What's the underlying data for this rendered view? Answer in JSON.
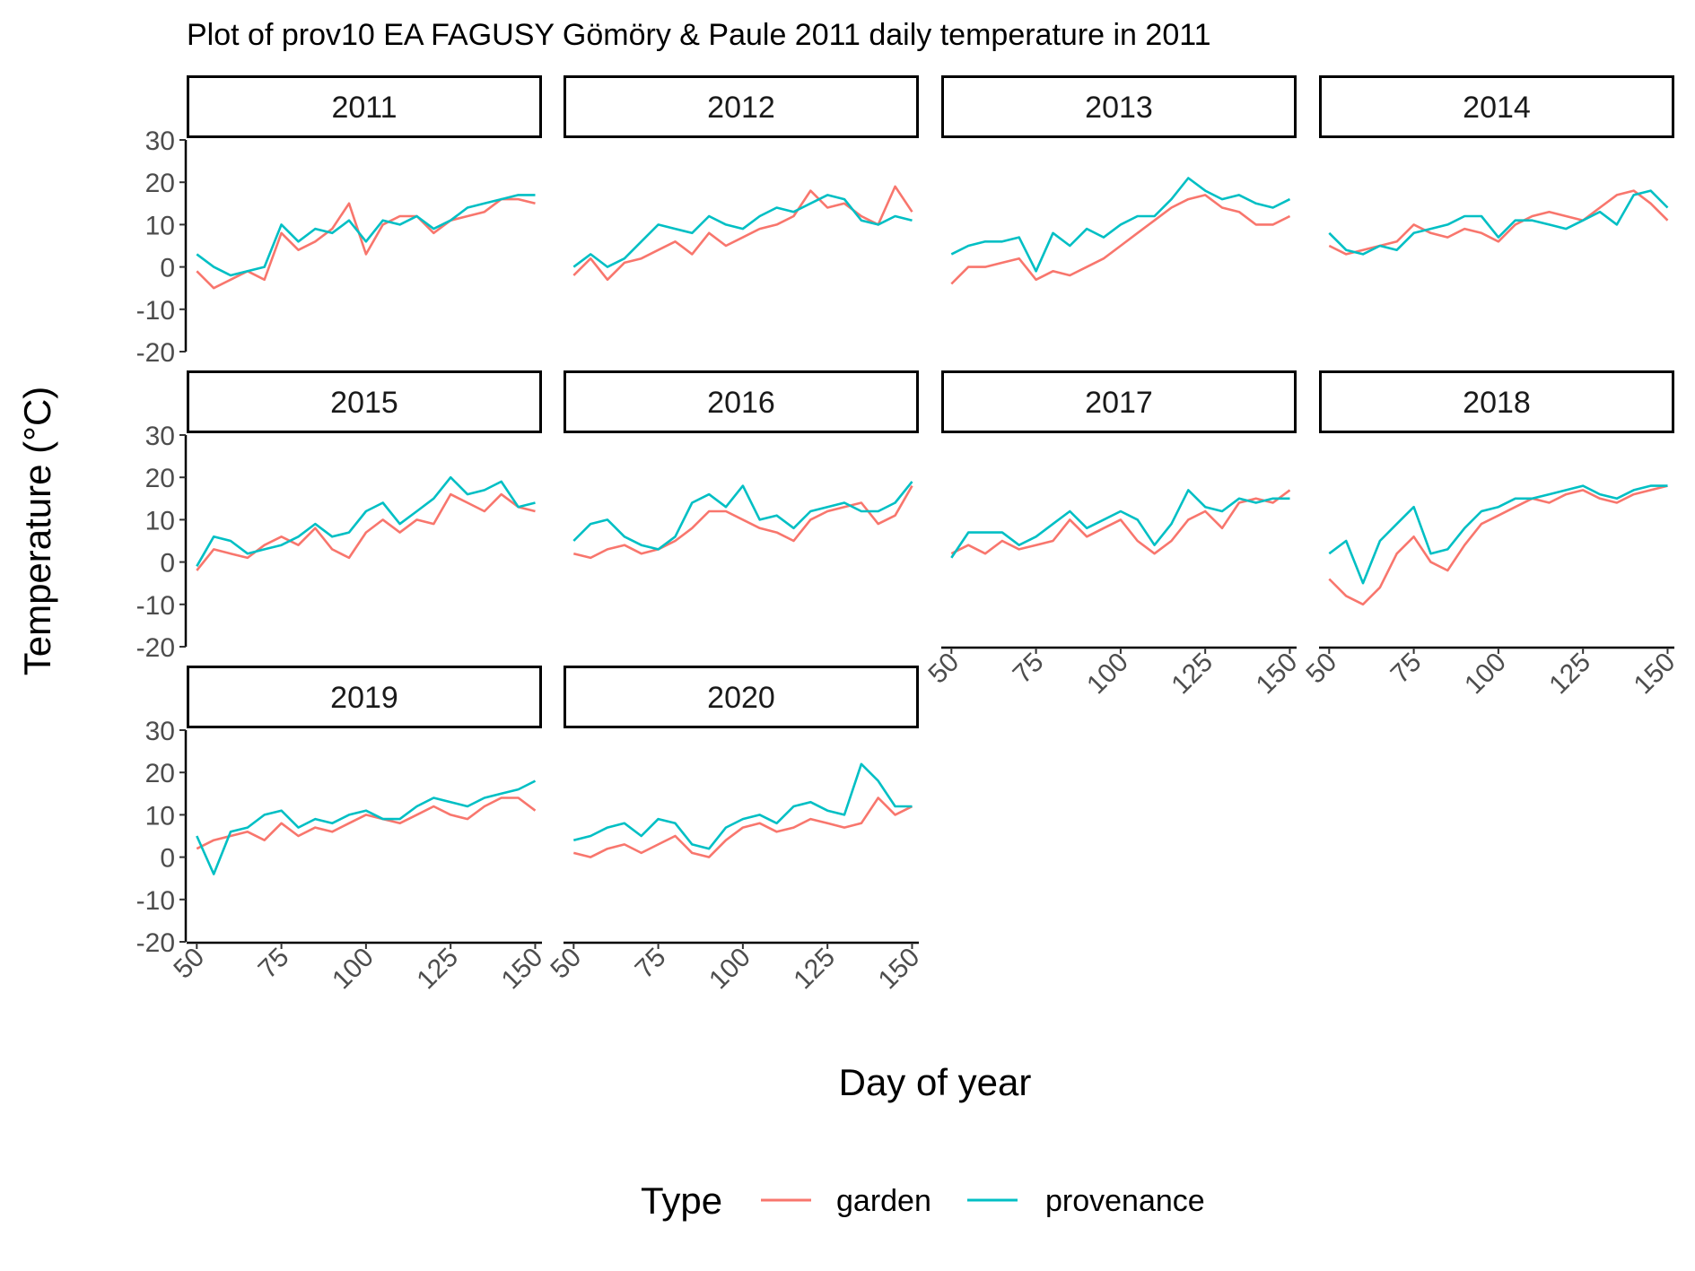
{
  "chart_data": {
    "type": "line",
    "title": "Plot of prov10 EA FAGUSY Gömöry & Paule 2011 daily temperature in 2011",
    "xlabel": "Day of year",
    "ylabel": "Temperature (°C)",
    "xlim": [
      47,
      152
    ],
    "ylim": [
      -20,
      30
    ],
    "xticks": [
      50,
      75,
      100,
      125,
      150
    ],
    "yticks": [
      -20,
      -10,
      0,
      10,
      20,
      30
    ],
    "legend": {
      "title": "Type",
      "position": "bottom",
      "entries": [
        {
          "name": "garden",
          "color": "#F8766D"
        },
        {
          "name": "provenance",
          "color": "#00BFC4"
        }
      ]
    },
    "x": [
      50,
      55,
      60,
      65,
      70,
      75,
      80,
      85,
      90,
      95,
      100,
      105,
      110,
      115,
      120,
      125,
      130,
      135,
      140,
      145,
      150
    ],
    "panels": [
      {
        "label": "2011",
        "series": [
          {
            "name": "garden",
            "values": [
              -1,
              -5,
              -3,
              -1,
              -3,
              8,
              4,
              6,
              9,
              15,
              3,
              10,
              12,
              12,
              8,
              11,
              12,
              13,
              16,
              16,
              15
            ]
          },
          {
            "name": "provenance",
            "values": [
              3,
              0,
              -2,
              -1,
              0,
              10,
              6,
              9,
              8,
              11,
              6,
              11,
              10,
              12,
              9,
              11,
              14,
              15,
              16,
              17,
              17
            ]
          }
        ]
      },
      {
        "label": "2012",
        "series": [
          {
            "name": "garden",
            "values": [
              -2,
              2,
              -3,
              1,
              2,
              4,
              6,
              3,
              8,
              5,
              7,
              9,
              10,
              12,
              18,
              14,
              15,
              12,
              10,
              19,
              13
            ]
          },
          {
            "name": "provenance",
            "values": [
              0,
              3,
              0,
              2,
              6,
              10,
              9,
              8,
              12,
              10,
              9,
              12,
              14,
              13,
              15,
              17,
              16,
              11,
              10,
              12,
              11
            ]
          }
        ]
      },
      {
        "label": "2013",
        "series": [
          {
            "name": "garden",
            "values": [
              -4,
              0,
              0,
              1,
              2,
              -3,
              -1,
              -2,
              0,
              2,
              5,
              8,
              11,
              14,
              16,
              17,
              14,
              13,
              10,
              10,
              12
            ]
          },
          {
            "name": "provenance",
            "values": [
              3,
              5,
              6,
              6,
              7,
              -1,
              8,
              5,
              9,
              7,
              10,
              12,
              12,
              16,
              21,
              18,
              16,
              17,
              15,
              14,
              16
            ]
          }
        ]
      },
      {
        "label": "2014",
        "series": [
          {
            "name": "garden",
            "values": [
              5,
              3,
              4,
              5,
              6,
              10,
              8,
              7,
              9,
              8,
              6,
              10,
              12,
              13,
              12,
              11,
              14,
              17,
              18,
              15,
              11
            ]
          },
          {
            "name": "provenance",
            "values": [
              8,
              4,
              3,
              5,
              4,
              8,
              9,
              10,
              12,
              12,
              7,
              11,
              11,
              10,
              9,
              11,
              13,
              10,
              17,
              18,
              14
            ]
          }
        ]
      },
      {
        "label": "2015",
        "series": [
          {
            "name": "garden",
            "values": [
              -2,
              3,
              2,
              1,
              4,
              6,
              4,
              8,
              3,
              1,
              7,
              10,
              7,
              10,
              9,
              16,
              14,
              12,
              16,
              13,
              12
            ]
          },
          {
            "name": "provenance",
            "values": [
              -1,
              6,
              5,
              2,
              3,
              4,
              6,
              9,
              6,
              7,
              12,
              14,
              9,
              12,
              15,
              20,
              16,
              17,
              19,
              13,
              14
            ]
          }
        ]
      },
      {
        "label": "2016",
        "series": [
          {
            "name": "garden",
            "values": [
              2,
              1,
              3,
              4,
              2,
              3,
              5,
              8,
              12,
              12,
              10,
              8,
              7,
              5,
              10,
              12,
              13,
              14,
              9,
              11,
              18
            ]
          },
          {
            "name": "provenance",
            "values": [
              5,
              9,
              10,
              6,
              4,
              3,
              6,
              14,
              16,
              13,
              18,
              10,
              11,
              8,
              12,
              13,
              14,
              12,
              12,
              14,
              19
            ]
          }
        ]
      },
      {
        "label": "2017",
        "series": [
          {
            "name": "garden",
            "values": [
              2,
              4,
              2,
              5,
              3,
              4,
              5,
              10,
              6,
              8,
              10,
              5,
              2,
              5,
              10,
              12,
              8,
              14,
              15,
              14,
              17
            ]
          },
          {
            "name": "provenance",
            "values": [
              1,
              7,
              7,
              7,
              4,
              6,
              9,
              12,
              8,
              10,
              12,
              10,
              4,
              9,
              17,
              13,
              12,
              15,
              14,
              15,
              15
            ]
          }
        ]
      },
      {
        "label": "2018",
        "series": [
          {
            "name": "garden",
            "values": [
              -4,
              -8,
              -10,
              -6,
              2,
              6,
              0,
              -2,
              4,
              9,
              11,
              13,
              15,
              14,
              16,
              17,
              15,
              14,
              16,
              17,
              18
            ]
          },
          {
            "name": "provenance",
            "values": [
              2,
              5,
              -5,
              5,
              9,
              13,
              2,
              3,
              8,
              12,
              13,
              15,
              15,
              16,
              17,
              18,
              16,
              15,
              17,
              18,
              18
            ]
          }
        ]
      },
      {
        "label": "2019",
        "series": [
          {
            "name": "garden",
            "values": [
              2,
              4,
              5,
              6,
              4,
              8,
              5,
              7,
              6,
              8,
              10,
              9,
              8,
              10,
              12,
              10,
              9,
              12,
              14,
              14,
              11
            ]
          },
          {
            "name": "provenance",
            "values": [
              5,
              -4,
              6,
              7,
              10,
              11,
              7,
              9,
              8,
              10,
              11,
              9,
              9,
              12,
              14,
              13,
              12,
              14,
              15,
              16,
              18
            ]
          }
        ]
      },
      {
        "label": "2020",
        "series": [
          {
            "name": "garden",
            "values": [
              1,
              0,
              2,
              3,
              1,
              3,
              5,
              1,
              0,
              4,
              7,
              8,
              6,
              7,
              9,
              8,
              7,
              8,
              14,
              10,
              12
            ]
          },
          {
            "name": "provenance",
            "values": [
              4,
              5,
              7,
              8,
              5,
              9,
              8,
              3,
              2,
              7,
              9,
              10,
              8,
              12,
              13,
              11,
              10,
              22,
              18,
              12,
              12
            ]
          }
        ]
      }
    ]
  }
}
